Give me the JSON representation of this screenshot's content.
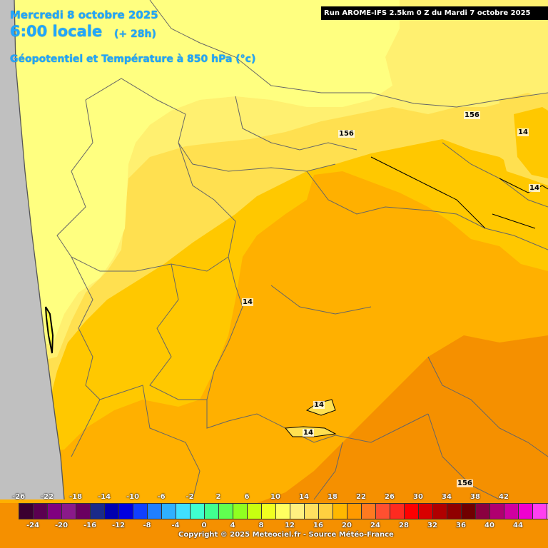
{
  "header": {
    "date": "Mercredi 8 octobre 2025",
    "time": "6:00 locale",
    "offset": "(+ 28h)",
    "parameter": "Géopotentiel et Température à 850 hPa (°c)"
  },
  "run_info": "Run AROME-IFS 2.5km 0 Z du Mardi 7 octobre 2025",
  "contour_labels": [
    "156",
    "156",
    "14",
    "14",
    "14",
    "14",
    "14",
    "156"
  ],
  "legend": {
    "top_ticks": [
      "-26",
      "-22",
      "-18",
      "-14",
      "-10",
      "-6",
      "-2",
      "2",
      "6",
      "10",
      "14",
      "18",
      "22",
      "26",
      "30",
      "34",
      "38",
      "42"
    ],
    "bottom_ticks": [
      "-24",
      "-20",
      "-16",
      "-12",
      "-8",
      "-4",
      "0",
      "4",
      "8",
      "12",
      "16",
      "20",
      "24",
      "28",
      "32",
      "36",
      "40",
      "44"
    ],
    "colors": [
      "#3a0030",
      "#5a0050",
      "#800080",
      "#8a1a8a",
      "#6a0060",
      "#1a2a8a",
      "#0000b0",
      "#0000e0",
      "#1040ff",
      "#1f7fff",
      "#2fb0ff",
      "#40e0ff",
      "#40ffd0",
      "#40ff90",
      "#60ff50",
      "#90ff20",
      "#c8ff10",
      "#f0ff20",
      "#ffff60",
      "#fff080",
      "#ffe060",
      "#ffd040",
      "#ffb800",
      "#ff9a00",
      "#ff7a20",
      "#ff5030",
      "#ff2a20",
      "#ff0000",
      "#d80000",
      "#b00000",
      "#900000",
      "#700000",
      "#8a0040",
      "#b00070",
      "#d000a0",
      "#f000d0",
      "#ff40f0",
      "#ff90ff"
    ]
  },
  "copyright": "Copyright © 2025 Meteociel.fr - Source Météo-France",
  "map_colors": {
    "ocean": "#c0c0c0",
    "zone_8_10": "#ffff80",
    "zone_10_12": "#fff070",
    "zone_12_14": "#ffe050",
    "zone_14_16": "#ffc800",
    "zone_16_18": "#ffb000",
    "zone_18_20": "#f59000"
  }
}
